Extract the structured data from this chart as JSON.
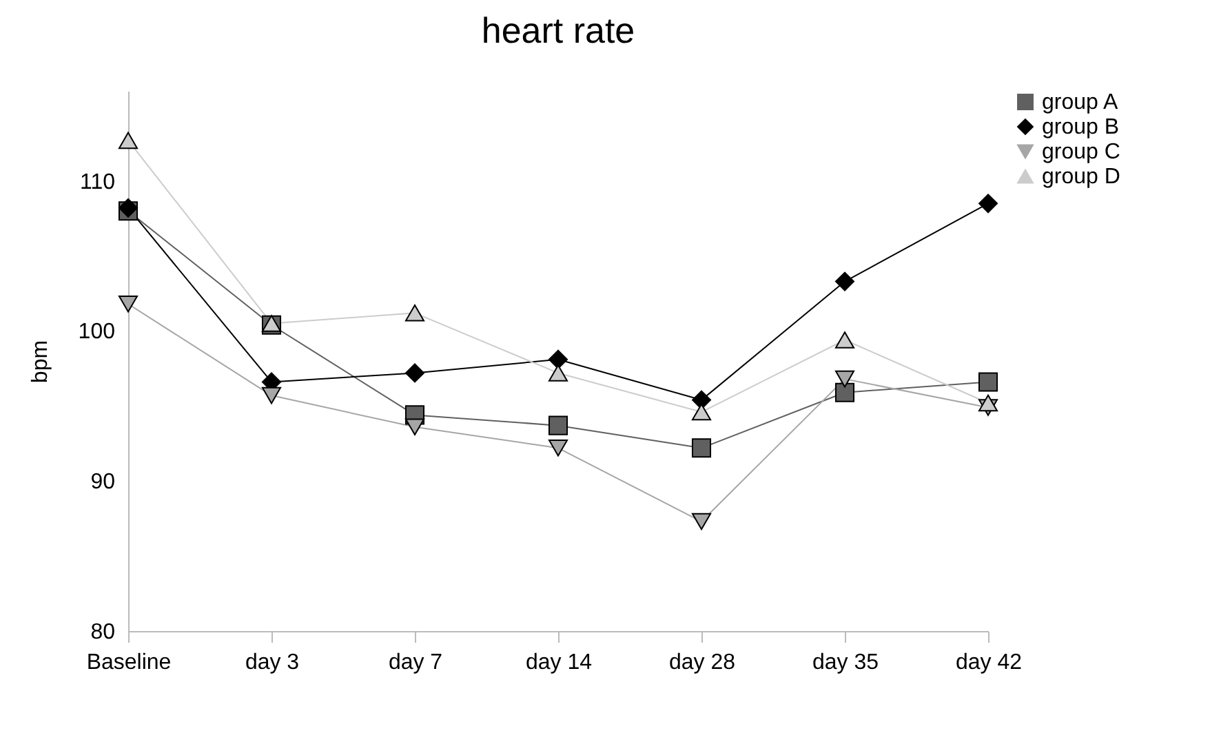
{
  "chart_data": {
    "type": "line",
    "title": "heart rate",
    "ylabel": "bpm",
    "categories": [
      "Baseline",
      "day 3",
      "day 7",
      "day 14",
      "day 28",
      "day 35",
      "day 42"
    ],
    "ylim": [
      80,
      116
    ],
    "yticks": [
      80,
      90,
      100,
      110
    ],
    "legend": "right",
    "series": [
      {
        "name": "group A",
        "color": "#606060",
        "marker": "square",
        "values": [
          108.0,
          100.4,
          94.4,
          93.7,
          92.2,
          95.9,
          96.6
        ]
      },
      {
        "name": "group B",
        "color": "#000000",
        "marker": "diamond",
        "values": [
          108.2,
          96.6,
          97.2,
          98.1,
          95.4,
          103.3,
          108.5
        ]
      },
      {
        "name": "group C",
        "color": "#a6a6a6",
        "marker": "triangle-down",
        "values": [
          101.8,
          95.7,
          93.6,
          92.2,
          87.3,
          96.8,
          94.9
        ]
      },
      {
        "name": "group D",
        "color": "#cccccc",
        "marker": "triangle",
        "values": [
          112.7,
          100.5,
          101.2,
          97.2,
          94.6,
          99.4,
          95.2
        ]
      }
    ]
  }
}
